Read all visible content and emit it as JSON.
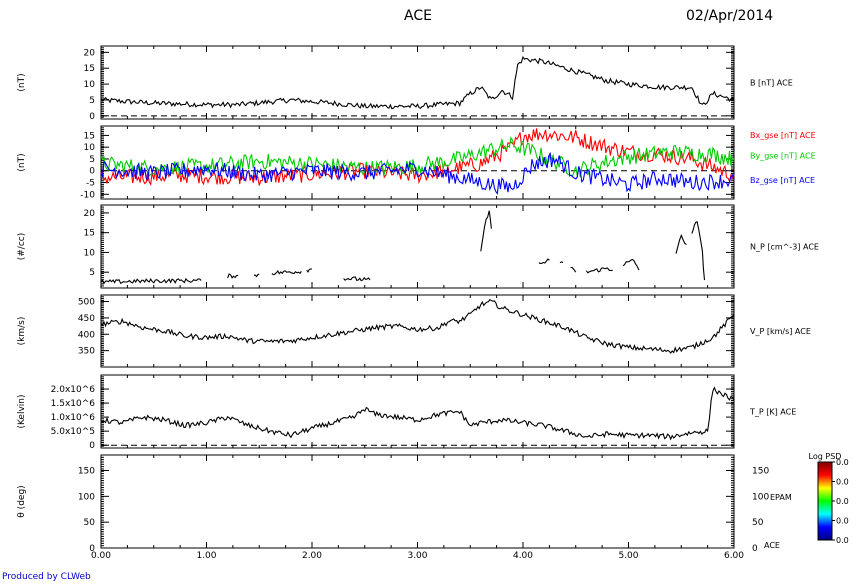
{
  "header": {
    "title": "ACE",
    "date": "02/Apr/2014"
  },
  "credit": "Produced by CLWeb",
  "colors": {
    "bx": "#ff0000",
    "by": "#00cc00",
    "bz": "#0000ff",
    "trace": "#000000",
    "credit": "#0000cc"
  },
  "colorbar": {
    "title": "Log PSD",
    "ticks": [
      "0.0",
      "0.0",
      "0.0",
      "0.0",
      "0.0"
    ],
    "colors": [
      "#000080",
      "#0000ff",
      "#00ffff",
      "#00ff00",
      "#ffff00",
      "#ff0000",
      "#800000"
    ]
  },
  "chart_data": [
    {
      "type": "line",
      "ylabel": "(nT)",
      "ylim": [
        -1,
        22
      ],
      "yticks": [
        0,
        5,
        10,
        15,
        20
      ],
      "right_label": "B [nT] ACE",
      "dashed_zero": true,
      "series": [
        {
          "name": "B [nT] ACE",
          "color": "#000000",
          "points": [
            [
              0,
              5
            ],
            [
              0.5,
              4
            ],
            [
              1,
              3.5
            ],
            [
              1.3,
              3.5
            ],
            [
              1.8,
              5
            ],
            [
              2.2,
              4
            ],
            [
              2.5,
              3
            ],
            [
              3.0,
              3
            ],
            [
              3.4,
              4
            ],
            [
              3.5,
              7
            ],
            [
              3.6,
              9
            ],
            [
              3.7,
              5
            ],
            [
              3.8,
              8
            ],
            [
              3.9,
              6
            ],
            [
              3.95,
              16
            ],
            [
              4.0,
              18
            ],
            [
              4.2,
              17
            ],
            [
              4.5,
              14
            ],
            [
              4.8,
              11
            ],
            [
              5.0,
              10
            ],
            [
              5.3,
              9
            ],
            [
              5.6,
              9
            ],
            [
              5.7,
              3
            ],
            [
              5.8,
              7
            ],
            [
              6.0,
              5
            ]
          ]
        }
      ]
    },
    {
      "type": "line",
      "ylabel": "(nT)",
      "ylim": [
        -12,
        19
      ],
      "yticks": [
        -10,
        -5,
        0,
        5,
        10,
        15
      ],
      "right_labels": [
        "Bx_gse [nT] ACE",
        "By_gse [nT] ACE",
        "Bz_gse [nT] ACE"
      ],
      "dashed_zero": true,
      "series": [
        {
          "name": "Bx_gse [nT] ACE",
          "color": "#ff0000",
          "points": [
            [
              0,
              -3
            ],
            [
              0.8,
              -2
            ],
            [
              1.5,
              -3
            ],
            [
              2.5,
              0
            ],
            [
              3.0,
              -2
            ],
            [
              3.6,
              3
            ],
            [
              3.9,
              10
            ],
            [
              4.0,
              15
            ],
            [
              4.2,
              16
            ],
            [
              4.5,
              14
            ],
            [
              4.8,
              10
            ],
            [
              5.0,
              8
            ],
            [
              5.3,
              7
            ],
            [
              5.6,
              5
            ],
            [
              6.0,
              -2
            ]
          ]
        },
        {
          "name": "By_gse [nT] ACE",
          "color": "#00cc00",
          "points": [
            [
              0,
              3
            ],
            [
              0.5,
              1
            ],
            [
              1.0,
              2
            ],
            [
              1.5,
              4
            ],
            [
              2.0,
              3
            ],
            [
              2.5,
              1
            ],
            [
              3.0,
              2
            ],
            [
              3.4,
              5
            ],
            [
              3.7,
              9
            ],
            [
              3.9,
              11
            ],
            [
              4.1,
              8
            ],
            [
              4.3,
              4
            ],
            [
              4.5,
              0
            ],
            [
              4.8,
              4
            ],
            [
              5.0,
              6
            ],
            [
              5.4,
              8
            ],
            [
              5.8,
              7
            ],
            [
              6.0,
              5
            ]
          ]
        },
        {
          "name": "Bz_gse [nT] ACE",
          "color": "#0000ff",
          "points": [
            [
              0,
              1
            ],
            [
              0.5,
              -1
            ],
            [
              1.0,
              1
            ],
            [
              1.5,
              -2
            ],
            [
              2.0,
              0
            ],
            [
              2.5,
              -1
            ],
            [
              3.0,
              1
            ],
            [
              3.4,
              -3
            ],
            [
              3.7,
              -6
            ],
            [
              3.9,
              -7
            ],
            [
              4.1,
              3
            ],
            [
              4.3,
              5
            ],
            [
              4.5,
              -1
            ],
            [
              4.8,
              -4
            ],
            [
              5.0,
              -6
            ],
            [
              5.3,
              -3
            ],
            [
              5.6,
              -5
            ],
            [
              6.0,
              -4
            ]
          ]
        }
      ]
    },
    {
      "type": "line",
      "ylabel": "(#/cc)",
      "ylim": [
        1,
        22
      ],
      "yticks": [
        5,
        10,
        15,
        20
      ],
      "right_label": "N_P [cm^-3] ACE",
      "dashed_zero": false,
      "series": [
        {
          "name": "N_P [cm^-3] ACE",
          "color": "#000000",
          "segments": [
            [
              [
                0,
                2.5
              ],
              [
                0.5,
                2.8
              ],
              [
                0.95,
                2.9
              ]
            ],
            [
              [
                1.2,
                4
              ],
              [
                1.3,
                4.2
              ]
            ],
            [
              [
                1.45,
                4
              ],
              [
                1.5,
                4.5
              ]
            ],
            [
              [
                1.62,
                4.8
              ],
              [
                1.9,
                5.2
              ]
            ],
            [
              [
                1.95,
                5.5
              ],
              [
                2.0,
                5.8
              ]
            ],
            [
              [
                2.3,
                3.5
              ],
              [
                2.55,
                3
              ]
            ],
            [
              [
                3.6,
                10
              ],
              [
                3.62,
                14
              ],
              [
                3.65,
                18
              ],
              [
                3.68,
                21
              ],
              [
                3.7,
                16
              ]
            ],
            [
              [
                4.15,
                7
              ],
              [
                4.25,
                8
              ]
            ],
            [
              [
                4.35,
                7
              ],
              [
                4.38,
                7.5
              ]
            ],
            [
              [
                4.45,
                6.5
              ],
              [
                4.5,
                5
              ]
            ],
            [
              [
                4.6,
                5
              ],
              [
                4.8,
                6
              ],
              [
                4.85,
                5.5
              ]
            ],
            [
              [
                4.95,
                7
              ],
              [
                5.05,
                8
              ],
              [
                5.1,
                5.5
              ]
            ],
            [
              [
                5.45,
                10
              ],
              [
                5.5,
                14
              ],
              [
                5.55,
                12
              ]
            ],
            [
              [
                5.6,
                15
              ],
              [
                5.65,
                18
              ],
              [
                5.7,
                10
              ],
              [
                5.72,
                3
              ]
            ]
          ]
        }
      ]
    },
    {
      "type": "line",
      "ylabel": "(km/s)",
      "ylim": [
        300,
        520
      ],
      "yticks": [
        350,
        400,
        450,
        500
      ],
      "right_label": "V_P [km/s] ACE",
      "dashed_zero": false,
      "series": [
        {
          "name": "V_P [km/s] ACE",
          "color": "#000000",
          "points": [
            [
              0,
              430
            ],
            [
              0.2,
              440
            ],
            [
              0.4,
              420
            ],
            [
              0.6,
              410
            ],
            [
              0.8,
              395
            ],
            [
              1.0,
              390
            ],
            [
              1.2,
              395
            ],
            [
              1.4,
              380
            ],
            [
              1.6,
              378
            ],
            [
              1.8,
              380
            ],
            [
              2.0,
              390
            ],
            [
              2.2,
              400
            ],
            [
              2.4,
              410
            ],
            [
              2.6,
              420
            ],
            [
              2.8,
              425
            ],
            [
              3.0,
              415
            ],
            [
              3.2,
              420
            ],
            [
              3.3,
              440
            ],
            [
              3.4,
              440
            ],
            [
              3.5,
              460
            ],
            [
              3.6,
              490
            ],
            [
              3.7,
              500
            ],
            [
              3.8,
              480
            ],
            [
              4.0,
              460
            ],
            [
              4.2,
              440
            ],
            [
              4.4,
              420
            ],
            [
              4.6,
              390
            ],
            [
              4.8,
              370
            ],
            [
              5.0,
              360
            ],
            [
              5.2,
              355
            ],
            [
              5.4,
              350
            ],
            [
              5.6,
              360
            ],
            [
              5.8,
              390
            ],
            [
              6.0,
              460
            ]
          ]
        }
      ]
    },
    {
      "type": "line",
      "ylabel": "(Kelvin)",
      "ylim": [
        -100000,
        2500000
      ],
      "ytick_labels": [
        "0",
        "5.0x10^5",
        "1.0x10^6",
        "1.5x10^6",
        "2.0x10^6"
      ],
      "yticks": [
        0,
        500000,
        1000000,
        1500000,
        2000000
      ],
      "right_label": "T_P [K] ACE",
      "dashed_zero": true,
      "series": [
        {
          "name": "T_P [K] ACE",
          "color": "#000000",
          "points": [
            [
              0,
              900000
            ],
            [
              0.2,
              800000
            ],
            [
              0.4,
              1000000
            ],
            [
              0.6,
              900000
            ],
            [
              0.8,
              700000
            ],
            [
              1.0,
              800000
            ],
            [
              1.2,
              1000000
            ],
            [
              1.4,
              700000
            ],
            [
              1.6,
              500000
            ],
            [
              1.8,
              350000
            ],
            [
              2.0,
              600000
            ],
            [
              2.2,
              800000
            ],
            [
              2.4,
              1000000
            ],
            [
              2.5,
              1300000
            ],
            [
              2.6,
              1100000
            ],
            [
              2.8,
              1000000
            ],
            [
              3.0,
              900000
            ],
            [
              3.2,
              1100000
            ],
            [
              3.4,
              1200000
            ],
            [
              3.5,
              700000
            ],
            [
              3.6,
              800000
            ],
            [
              3.8,
              900000
            ],
            [
              4.0,
              800000
            ],
            [
              4.2,
              700000
            ],
            [
              4.4,
              500000
            ],
            [
              4.6,
              300000
            ],
            [
              4.8,
              400000
            ],
            [
              5.0,
              350000
            ],
            [
              5.2,
              350000
            ],
            [
              5.4,
              300000
            ],
            [
              5.6,
              450000
            ],
            [
              5.75,
              500000
            ],
            [
              5.8,
              2000000
            ],
            [
              5.9,
              1800000
            ],
            [
              6.0,
              1600000
            ]
          ]
        }
      ]
    },
    {
      "type": "heatmap",
      "ylabel": "θ (deg)",
      "ylim": [
        0,
        180
      ],
      "yticks": [
        0,
        50,
        100,
        150
      ],
      "right_label": "EPAM",
      "right_sub": "ACE",
      "empty": true
    }
  ],
  "xaxis": {
    "xlim": [
      0,
      6
    ],
    "ticks": [
      "0.00",
      "1.00",
      "2.00",
      "3.00",
      "4.00",
      "5.00",
      "6.00"
    ]
  }
}
